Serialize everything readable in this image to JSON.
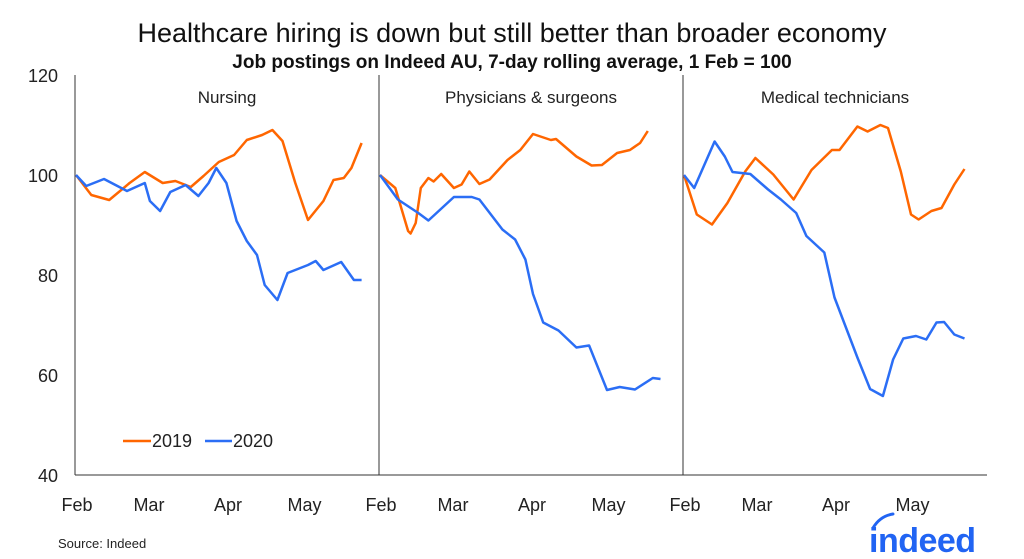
{
  "chart_data": [
    {
      "type": "line",
      "panel_title": "Nursing",
      "series": [
        {
          "name": "2019",
          "color": "#ff6600",
          "points": [
            [
              "02-01",
              100
            ],
            [
              "02-07",
              96
            ],
            [
              "02-14",
              95
            ],
            [
              "02-22",
              98.4
            ],
            [
              "02-28",
              100.6
            ],
            [
              "03-06",
              98.4
            ],
            [
              "03-11",
              98.8
            ],
            [
              "03-17",
              97.6
            ],
            [
              "03-22",
              99.8
            ],
            [
              "03-28",
              102.6
            ],
            [
              "04-03",
              104
            ],
            [
              "04-08",
              107
            ],
            [
              "04-14",
              108
            ],
            [
              "04-18",
              109
            ],
            [
              "04-22",
              106.8
            ],
            [
              "04-27",
              98.4
            ],
            [
              "05-02",
              91
            ],
            [
              "05-08",
              94.8
            ],
            [
              "05-12",
              99
            ],
            [
              "05-16",
              99.4
            ],
            [
              "05-19",
              101.4
            ],
            [
              "05-23",
              106.4
            ]
          ]
        },
        {
          "name": "2020",
          "color": "#2b6ef5",
          "points": [
            [
              "02-01",
              100
            ],
            [
              "02-05",
              97.8
            ],
            [
              "02-12",
              99.2
            ],
            [
              "02-21",
              96.8
            ],
            [
              "02-28",
              98.4
            ],
            [
              "03-01",
              94.8
            ],
            [
              "03-05",
              92.8
            ],
            [
              "03-09",
              96.6
            ],
            [
              "03-15",
              98
            ],
            [
              "03-20",
              95.8
            ],
            [
              "03-24",
              98.4
            ],
            [
              "03-27",
              101.4
            ],
            [
              "03-31",
              98.4
            ],
            [
              "04-04",
              90.8
            ],
            [
              "04-08",
              86.8
            ],
            [
              "04-12",
              84
            ],
            [
              "04-15",
              78
            ],
            [
              "04-20",
              75
            ],
            [
              "04-24",
              80.4
            ],
            [
              "05-02",
              82
            ],
            [
              "05-05",
              82.8
            ],
            [
              "05-08",
              81
            ],
            [
              "05-15",
              82.6
            ],
            [
              "05-20",
              79
            ],
            [
              "05-23",
              79
            ]
          ]
        }
      ]
    },
    {
      "type": "line",
      "panel_title": "Physicians & surgeons",
      "series": [
        {
          "name": "2019",
          "color": "#ff6600",
          "points": [
            [
              "02-01",
              100
            ],
            [
              "02-07",
              97.4
            ],
            [
              "02-12",
              88.8
            ],
            [
              "02-13",
              88.3
            ],
            [
              "02-15",
              90.4
            ],
            [
              "02-17",
              97.4
            ],
            [
              "02-20",
              99.4
            ],
            [
              "02-22",
              98.7
            ],
            [
              "02-25",
              100.2
            ],
            [
              "03-01",
              97.4
            ],
            [
              "03-04",
              98.1
            ],
            [
              "03-07",
              100.7
            ],
            [
              "03-11",
              98.2
            ],
            [
              "03-15",
              99.1
            ],
            [
              "03-22",
              103
            ],
            [
              "03-27",
              105
            ],
            [
              "04-01",
              108.2
            ],
            [
              "04-08",
              107
            ],
            [
              "04-10",
              107.2
            ],
            [
              "04-18",
              103.7
            ],
            [
              "04-24",
              101.9
            ],
            [
              "04-28",
              102
            ],
            [
              "05-04",
              104.4
            ],
            [
              "05-09",
              105
            ],
            [
              "05-13",
              106.4
            ],
            [
              "05-16",
              108.8
            ]
          ]
        },
        {
          "name": "2020",
          "color": "#2b6ef5",
          "points": [
            [
              "02-01",
              100
            ],
            [
              "02-08",
              95.1
            ],
            [
              "02-16",
              92.4
            ],
            [
              "02-20",
              90.9
            ],
            [
              "03-01",
              95.6
            ],
            [
              "03-08",
              95.6
            ],
            [
              "03-11",
              95.1
            ],
            [
              "03-20",
              89.1
            ],
            [
              "03-25",
              87.1
            ],
            [
              "03-29",
              83.1
            ],
            [
              "04-01",
              76.2
            ],
            [
              "04-05",
              70.5
            ],
            [
              "04-11",
              68.9
            ],
            [
              "04-18",
              65.5
            ],
            [
              "04-23",
              65.9
            ],
            [
              "04-30",
              57
            ],
            [
              "05-05",
              57.6
            ],
            [
              "05-11",
              57.1
            ],
            [
              "05-18",
              59.4
            ],
            [
              "05-21",
              59.2
            ]
          ]
        }
      ]
    },
    {
      "type": "line",
      "panel_title": "Medical technicians",
      "series": [
        {
          "name": "2019",
          "color": "#ff6600",
          "points": [
            [
              "02-01",
              100
            ],
            [
              "02-06",
              92.1
            ],
            [
              "02-12",
              90.1
            ],
            [
              "02-18",
              94.4
            ],
            [
              "02-25",
              100.7
            ],
            [
              "02-29",
              103.4
            ],
            [
              "03-07",
              100.1
            ],
            [
              "03-15",
              95.1
            ],
            [
              "03-22",
              101
            ],
            [
              "03-30",
              105
            ],
            [
              "04-02",
              105
            ],
            [
              "04-09",
              109.7
            ],
            [
              "04-13",
              108.7
            ],
            [
              "04-18",
              110
            ],
            [
              "04-21",
              109.4
            ],
            [
              "04-26",
              100.7
            ],
            [
              "04-30",
              92.1
            ],
            [
              "05-03",
              91.1
            ],
            [
              "05-08",
              92.8
            ],
            [
              "05-12",
              93.4
            ],
            [
              "05-17",
              98.1
            ],
            [
              "05-21",
              101.2
            ]
          ]
        },
        {
          "name": "2020",
          "color": "#2b6ef5",
          "points": [
            [
              "02-01",
              100
            ],
            [
              "02-05",
              97.4
            ],
            [
              "02-13",
              106.7
            ],
            [
              "02-17",
              103.7
            ],
            [
              "02-20",
              100.6
            ],
            [
              "02-27",
              100.2
            ],
            [
              "03-05",
              97.1
            ],
            [
              "03-10",
              95.1
            ],
            [
              "03-16",
              92.4
            ],
            [
              "03-20",
              87.8
            ],
            [
              "03-27",
              84.5
            ],
            [
              "03-31",
              75.5
            ],
            [
              "04-04",
              70.2
            ],
            [
              "04-09",
              63.5
            ],
            [
              "04-14",
              57.2
            ],
            [
              "04-19",
              55.8
            ],
            [
              "04-23",
              63.1
            ],
            [
              "04-27",
              67.3
            ],
            [
              "05-02",
              67.8
            ],
            [
              "05-06",
              67.1
            ],
            [
              "05-10",
              70.5
            ],
            [
              "05-13",
              70.6
            ],
            [
              "05-17",
              68.1
            ],
            [
              "05-21",
              67.3
            ]
          ]
        }
      ]
    }
  ],
  "title": "Healthcare hiring is down but still better than broader economy",
  "subtitle": "Job postings on Indeed AU, 7-day rolling average, 1 Feb = 100",
  "y_ticks": [
    "120",
    "100",
    "80",
    "60",
    "40"
  ],
  "ylim": [
    40,
    120
  ],
  "x_ticks": [
    "Feb",
    "Mar",
    "Apr",
    "May"
  ],
  "legend": {
    "items": [
      "2019",
      "2020"
    ],
    "position": "bottom-left of first panel"
  },
  "grid": false,
  "source": "Source: Indeed",
  "logo": "indeed"
}
